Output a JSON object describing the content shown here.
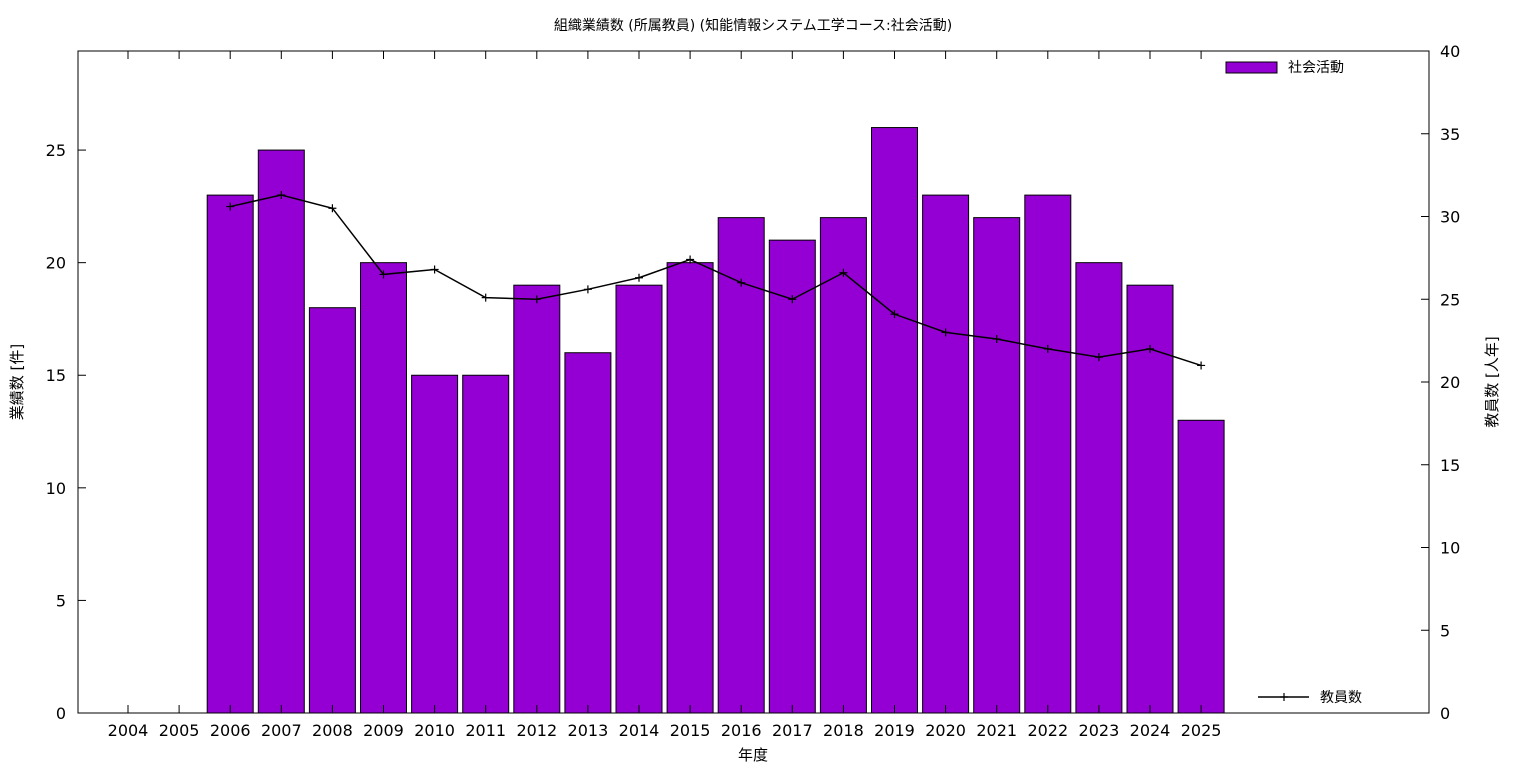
{
  "chart_data": {
    "type": "bar",
    "title": "組織業績数 (所属教員) (知能情報システム工学コース:社会活動)",
    "xlabel": "年度",
    "ylabel": "業績数 [件]",
    "y2label": "教員数 [人年]",
    "categories": [
      "2004",
      "2005",
      "2006",
      "2007",
      "2008",
      "2009",
      "2010",
      "2011",
      "2012",
      "2013",
      "2014",
      "2015",
      "2016",
      "2017",
      "2018",
      "2019",
      "2020",
      "2021",
      "2022",
      "2023",
      "2024",
      "2025"
    ],
    "ylim": [
      0,
      29.4
    ],
    "yticks": [
      0,
      5,
      10,
      15,
      20,
      25
    ],
    "y2lim": [
      0,
      40
    ],
    "y2ticks": [
      0,
      5,
      10,
      15,
      20,
      25,
      30,
      35,
      40
    ],
    "grid": false,
    "series": [
      {
        "name": "社会活動",
        "type": "bar",
        "axis": "left",
        "color": "#9400d3",
        "values": [
          null,
          null,
          23,
          25,
          18,
          20,
          15,
          15,
          19,
          16,
          19,
          20,
          22,
          21,
          22,
          26,
          23,
          22,
          23,
          20,
          19,
          13
        ]
      },
      {
        "name": "教員数",
        "type": "line",
        "axis": "right",
        "color": "#000000",
        "marker": "plus",
        "values": [
          null,
          null,
          30.6,
          31.3,
          30.5,
          26.5,
          26.8,
          25.1,
          25.0,
          25.6,
          26.3,
          27.4,
          26.0,
          25.0,
          26.6,
          24.1,
          23.0,
          22.6,
          22.0,
          21.5,
          22.0,
          21.0
        ]
      }
    ],
    "legend": [
      {
        "name": "社会活動",
        "placement": "top-right"
      },
      {
        "name": "教員数",
        "placement": "bottom-right"
      }
    ]
  }
}
